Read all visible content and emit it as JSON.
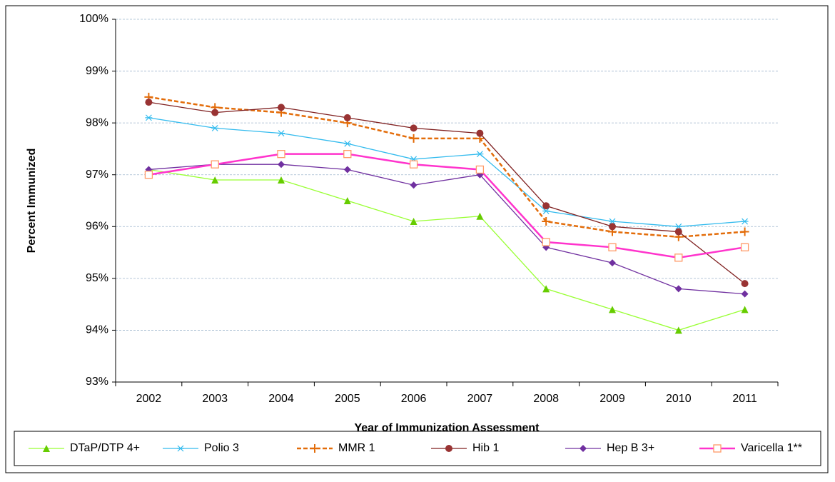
{
  "chart_data": {
    "type": "line",
    "y_label": "Percent Immunized",
    "x_label": "Year of Immunization Assessment",
    "categories": [
      "2002",
      "2003",
      "2004",
      "2005",
      "2006",
      "2007",
      "2008",
      "2009",
      "2010",
      "2011"
    ],
    "ylim": [
      93,
      100
    ],
    "yticks": [
      {
        "value": 93,
        "label": "93%"
      },
      {
        "value": 94,
        "label": "94%"
      },
      {
        "value": 95,
        "label": "95%"
      },
      {
        "value": 96,
        "label": "96%"
      },
      {
        "value": 97,
        "label": "97%"
      },
      {
        "value": 98,
        "label": "98%"
      },
      {
        "value": 99,
        "label": "99%"
      },
      {
        "value": 100,
        "label": "100%"
      }
    ],
    "grid": true,
    "legend": "bottom",
    "series": [
      {
        "name": "DTaP/DTP 4+",
        "color": "#99ff33",
        "marker": "triangle",
        "marker_color": "#66cc00",
        "values": [
          97.1,
          96.9,
          96.9,
          96.5,
          96.1,
          96.2,
          94.8,
          94.4,
          94.0,
          94.4
        ]
      },
      {
        "name": "Polio 3",
        "color": "#33bbee",
        "marker": "star",
        "marker_color": "#33bbee",
        "values": [
          98.1,
          97.9,
          97.8,
          97.6,
          97.3,
          97.4,
          96.3,
          96.1,
          96.0,
          96.1
        ]
      },
      {
        "name": "MMR 1",
        "color": "#e36c09",
        "marker": "plus",
        "marker_color": "#e36c09",
        "dashed": true,
        "values": [
          98.5,
          98.3,
          98.2,
          98.0,
          97.7,
          97.7,
          96.1,
          95.9,
          95.8,
          95.9
        ]
      },
      {
        "name": "Hib 1",
        "color": "#7f1f1f",
        "marker": "circle",
        "marker_color": "#993333",
        "values": [
          98.4,
          98.2,
          98.3,
          98.1,
          97.9,
          97.8,
          96.4,
          96.0,
          95.9,
          94.9
        ]
      },
      {
        "name": "Hep B 3+",
        "color": "#7030a0",
        "marker": "diamond",
        "marker_color": "#7030a0",
        "values": [
          97.1,
          97.2,
          97.2,
          97.1,
          96.8,
          97.0,
          95.6,
          95.3,
          94.8,
          94.7
        ]
      },
      {
        "name": "Varicella 1**",
        "color": "#ff33cc",
        "marker": "square",
        "marker_color": "#ff9966",
        "values": [
          97.0,
          97.2,
          97.4,
          97.4,
          97.2,
          97.1,
          95.7,
          95.6,
          95.4,
          95.6
        ]
      }
    ]
  }
}
